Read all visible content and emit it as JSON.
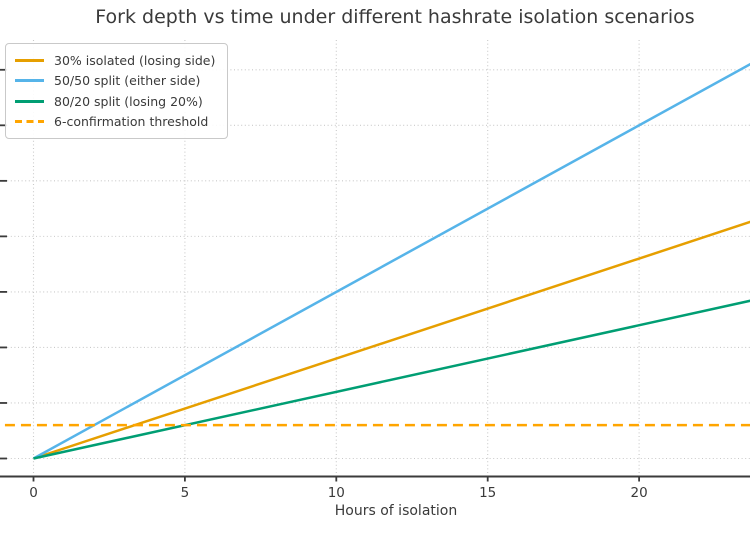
{
  "chart_data": {
    "type": "line",
    "title": "Fork depth vs time under different hashrate isolation scenarios",
    "xlabel": "Hours of isolation",
    "ylabel": "",
    "x_ticks": [
      0,
      5,
      10,
      15,
      20
    ],
    "x_tick_labels": [
      "0",
      "5",
      "10",
      "15",
      "20"
    ],
    "y_ticks": [
      0,
      10,
      20,
      30,
      40,
      50,
      60,
      70
    ],
    "y_tick_labels_visible": false,
    "xlim_visible": [
      -1.1,
      23.7
    ],
    "ylim_visible": [
      -3.3,
      75.4
    ],
    "grid": "dotted",
    "legend_position": "upper left",
    "series": [
      {
        "name": "30% isolated (losing side)",
        "color": "#E69F00",
        "style": "solid",
        "blocks_per_hour": 1.8,
        "x": [
          0,
          24
        ],
        "values": [
          0,
          43.2
        ]
      },
      {
        "name": "50/50 split (either side)",
        "color": "#56B4E9",
        "style": "solid",
        "blocks_per_hour": 3.0,
        "x": [
          0,
          24
        ],
        "values": [
          0,
          72
        ]
      },
      {
        "name": "80/20 split (losing 20%)",
        "color": "#009E73",
        "style": "solid",
        "blocks_per_hour": 1.2,
        "x": [
          0,
          24
        ],
        "values": [
          0,
          28.8
        ]
      },
      {
        "name": "6-confirmation threshold",
        "color": "#FFA500",
        "style": "dashed",
        "constant_value": 6,
        "x": [
          -2,
          24
        ],
        "values": [
          6,
          6
        ]
      }
    ]
  },
  "colors": {
    "text": "#3a3a3a",
    "grid": "#c9c9c9",
    "spine": "#3b3b3b",
    "background": "#ffffff"
  }
}
